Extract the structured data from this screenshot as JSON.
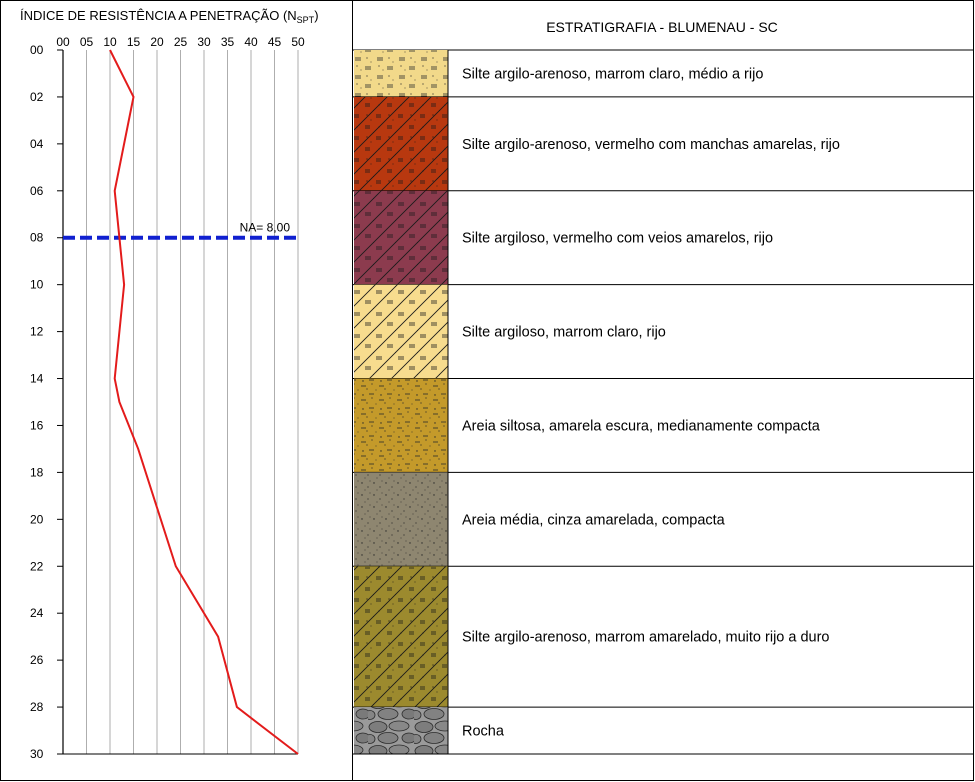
{
  "chart_data": [
    {
      "type": "line",
      "title_main": "ÍNDICE DE RESISTÊNCIA A PENETRAÇÃO (N",
      "title_sub": "SPT",
      "title_close": ")",
      "x_ticks": [
        "00",
        "05",
        "10",
        "15",
        "20",
        "25",
        "30",
        "35",
        "40",
        "45",
        "50"
      ],
      "x_range": [
        0,
        50
      ],
      "y_ticks": [
        "00",
        "02",
        "04",
        "06",
        "08",
        "10",
        "12",
        "14",
        "16",
        "18",
        "20",
        "22",
        "24",
        "26",
        "28",
        "30"
      ],
      "y_range": [
        0,
        30
      ],
      "grid": "vertical",
      "series": [
        {
          "color": "#e31b1b",
          "points": [
            {
              "x": 10,
              "y": 0
            },
            {
              "x": 15,
              "y": 2
            },
            {
              "x": 11,
              "y": 6
            },
            {
              "x": 12,
              "y": 8
            },
            {
              "x": 13,
              "y": 10
            },
            {
              "x": 11,
              "y": 14
            },
            {
              "x": 12,
              "y": 15
            },
            {
              "x": 16,
              "y": 17
            },
            {
              "x": 24,
              "y": 22
            },
            {
              "x": 33,
              "y": 25
            },
            {
              "x": 37,
              "y": 28
            },
            {
              "x": 50,
              "y": 30
            }
          ]
        }
      ],
      "water_level": {
        "depth": 8.0,
        "label": "NA= 8,00",
        "color": "#1020d0"
      }
    },
    {
      "type": "table",
      "title": "ESTRATIGRAFIA - BLUMENAU - SC",
      "layers": [
        {
          "top": 0,
          "bottom": 2,
          "label": "Silte argilo-arenoso, marrom claro, médio a rijo",
          "color": "#f2d98a",
          "pattern": "silt-sand"
        },
        {
          "top": 2,
          "bottom": 6,
          "label": "Silte argilo-arenoso, vermelho com manchas amarelas, rijo",
          "color": "#b8380f",
          "pattern": "silt-clay-sand"
        },
        {
          "top": 6,
          "bottom": 10,
          "label": "Silte argiloso, vermelho com veios amarelos, rijo",
          "color": "#8c3b4e",
          "pattern": "silt-clay"
        },
        {
          "top": 10,
          "bottom": 14,
          "label": "Silte argiloso, marrom claro, rijo",
          "color": "#f7dc8e",
          "pattern": "silt-clay"
        },
        {
          "top": 14,
          "bottom": 18,
          "label": "Areia siltosa, amarela escura, medianamente compacta",
          "color": "#c49a2a",
          "pattern": "silty-sand"
        },
        {
          "top": 18,
          "bottom": 22,
          "label": "Areia média, cinza amarelada, compacta",
          "color": "#8e8670",
          "pattern": "sand"
        },
        {
          "top": 22,
          "bottom": 28,
          "label": "Silte argilo-arenoso, marrom amarelado, muito rijo a duro",
          "color": "#9c8a2e",
          "pattern": "silt-clay-sand"
        },
        {
          "top": 28,
          "bottom": 30,
          "label": "Rocha",
          "color": "#9a9a9a",
          "pattern": "rock"
        }
      ]
    }
  ]
}
